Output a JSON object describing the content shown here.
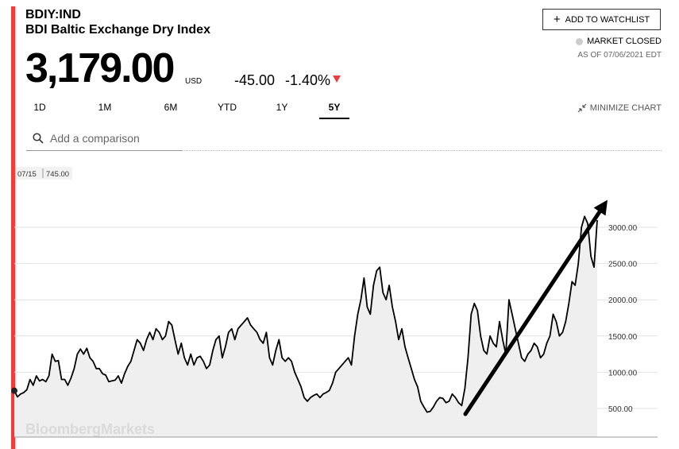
{
  "header": {
    "ticker": "BDIY:IND",
    "name": "BDI Baltic Exchange Dry Index",
    "price": "3,179.00",
    "currency": "USD",
    "change": "-45.00",
    "change_pct": "-1.40%",
    "change_direction": "down",
    "down_color": "#e84040",
    "accent_color": "#f23b3b"
  },
  "watchlist_button": {
    "label": "ADD TO WATCHLIST",
    "icon": "plus-icon"
  },
  "market_status": {
    "label": "MARKET CLOSED",
    "as_of": "AS OF 07/06/2021 EDT"
  },
  "range_tabs": [
    "1D",
    "1M",
    "6M",
    "YTD",
    "1Y",
    "5Y"
  ],
  "active_tab": "5Y",
  "minimize": {
    "label": "MINIMIZE CHART",
    "icon": "minimize-arrows-icon"
  },
  "comparison": {
    "placeholder": "Add a comparison",
    "icon": "search-icon"
  },
  "watermark": "BloombergMarkets",
  "chart_data": {
    "type": "area",
    "start_label": {
      "date": "07/15",
      "value": "745.00"
    },
    "y_ticks": [
      500,
      1000,
      1500,
      2000,
      2500,
      3000
    ],
    "y_tick_labels": [
      "500.00",
      "1000.00",
      "1500.00",
      "2000.00",
      "2500.00",
      "3000.00"
    ],
    "ylim": [
      300,
      3500
    ],
    "grid": true,
    "series": [
      {
        "values": [
          745,
          660,
          700,
          720,
          760,
          900,
          820,
          950,
          880,
          900,
          870,
          950,
          1250,
          1150,
          1160,
          900,
          900,
          820,
          920,
          1050,
          1250,
          1320,
          1250,
          1330,
          1200,
          1150,
          1050,
          1050,
          980,
          960,
          870,
          880,
          890,
          950,
          850,
          980,
          1080,
          1150,
          1300,
          1450,
          1400,
          1300,
          1450,
          1550,
          1450,
          1600,
          1550,
          1450,
          1500,
          1700,
          1650,
          1450,
          1250,
          1400,
          1200,
          1100,
          1250,
          1100,
          1200,
          1220,
          1150,
          1050,
          1100,
          1300,
          1450,
          1500,
          1200,
          1350,
          1550,
          1600,
          1450,
          1600,
          1650,
          1700,
          1750,
          1650,
          1600,
          1550,
          1450,
          1400,
          1550,
          1200,
          1100,
          1300,
          1450,
          1200,
          1150,
          1200,
          1150,
          1000,
          900,
          800,
          650,
          600,
          650,
          680,
          700,
          650,
          700,
          720,
          750,
          850,
          1000,
          1050,
          1100,
          1150,
          1200,
          1100,
          1500,
          1800,
          2000,
          2300,
          1900,
          1800,
          2200,
          2400,
          2450,
          2100,
          2000,
          2200,
          1900,
          1700,
          1450,
          1600,
          1350,
          1200,
          1050,
          900,
          800,
          600,
          520,
          450,
          460,
          520,
          600,
          650,
          640,
          580,
          600,
          700,
          650,
          580,
          540,
          780,
          1200,
          1800,
          1950,
          1850,
          1500,
          1300,
          1250,
          1500,
          1400,
          1350,
          1700,
          1450,
          1250,
          2000,
          1800,
          1600,
          1400,
          1200,
          1150,
          1250,
          1300,
          1400,
          1350,
          1200,
          1250,
          1400,
          1500,
          1800,
          1700,
          1500,
          1550,
          1700,
          1950,
          2250,
          2200,
          2500,
          3000,
          3150,
          3050,
          2600,
          2450,
          3100
        ]
      }
    ]
  }
}
